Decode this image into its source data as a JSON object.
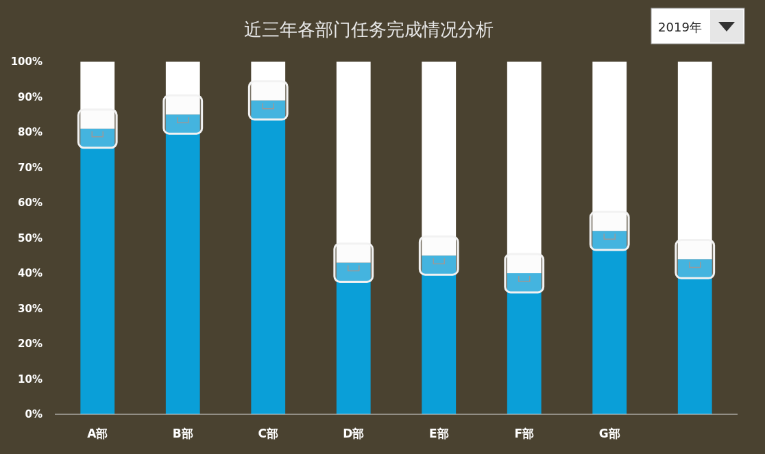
{
  "chart_data": {
    "type": "bar",
    "title": "近三年各部门任务完成情况分析",
    "stacked": true,
    "marker": "square",
    "categories": [
      "A部",
      "B部",
      "C部",
      "D部",
      "E部",
      "F部",
      "G部",
      null
    ],
    "series": [
      {
        "color": "#0a9fd8",
        "values": [
          81,
          85,
          89,
          43,
          45,
          40,
          52,
          44
        ]
      },
      {
        "color": "#ffffff",
        "values": [
          19,
          15,
          11,
          57,
          55,
          60,
          48,
          56
        ]
      }
    ],
    "ylim": [
      0,
      100
    ],
    "yticks": [
      {
        "value": 0,
        "label": "0%"
      },
      {
        "value": 10,
        "label": "10%"
      },
      {
        "value": 20,
        "label": "20%"
      },
      {
        "value": 30,
        "label": "30%"
      },
      {
        "value": 40,
        "label": "40%"
      },
      {
        "value": 50,
        "label": "50%"
      },
      {
        "value": 60,
        "label": "60%"
      },
      {
        "value": 70,
        "label": "70%"
      },
      {
        "value": 80,
        "label": "80%"
      },
      {
        "value": 90,
        "label": "90%"
      },
      {
        "value": 100,
        "label": "100%"
      }
    ],
    "annotations": [
      "2019年"
    ]
  }
}
